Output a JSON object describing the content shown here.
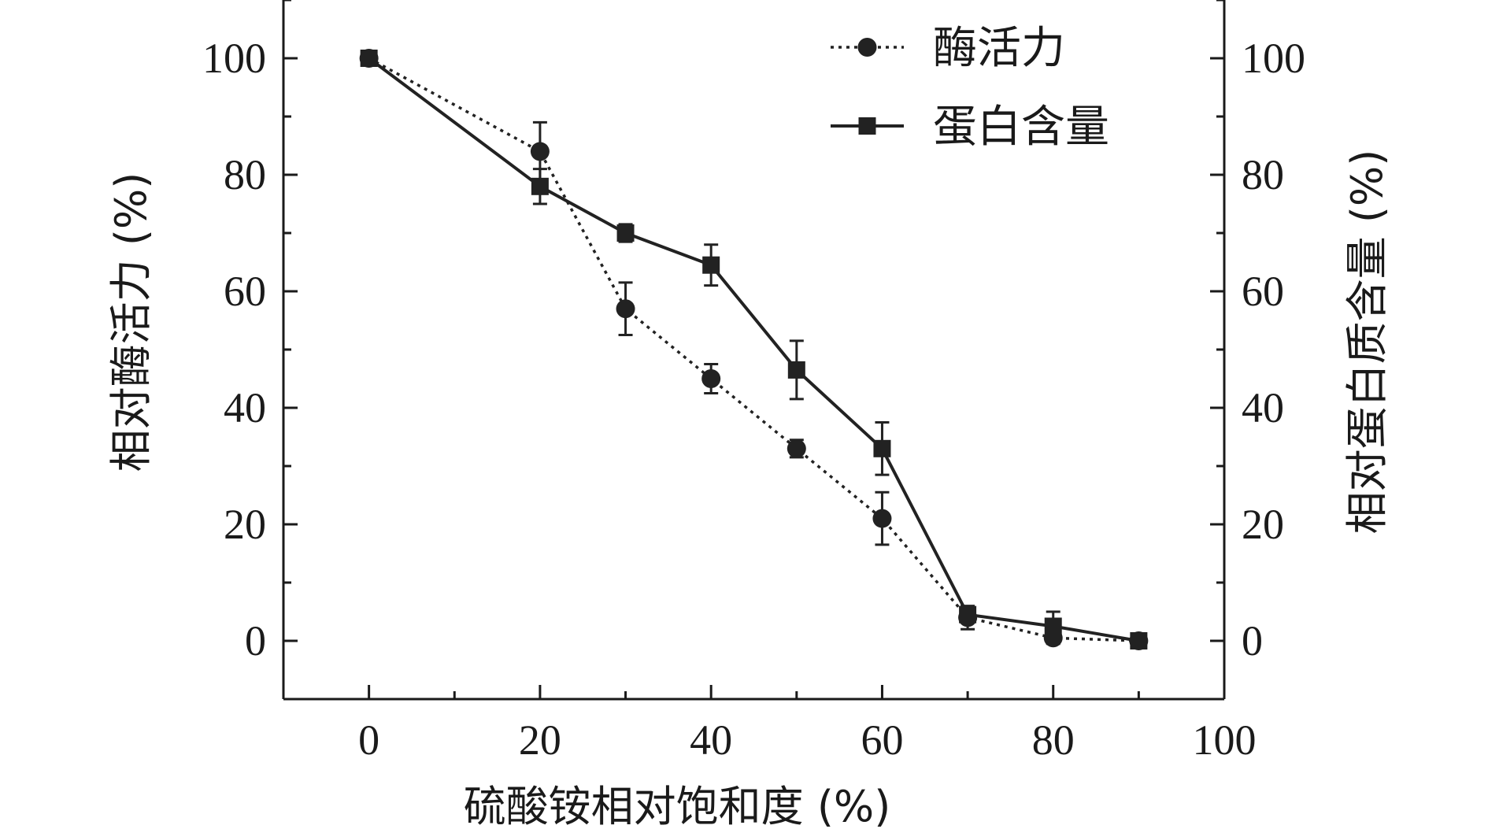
{
  "chart_data": {
    "type": "line",
    "xlabel": "硫酸铵相对饱和度 (%)",
    "ylabel_left": "相对酶活力 (%)",
    "ylabel_right": "相对蛋白质含量 (%)",
    "xlim": [
      -10,
      100
    ],
    "ylim": [
      -10,
      110
    ],
    "x_ticks": [
      0,
      20,
      40,
      60,
      80,
      100
    ],
    "y_ticks": [
      0,
      20,
      40,
      60,
      80,
      100
    ],
    "grid": false,
    "legend_position": "top-right",
    "series": [
      {
        "name": "酶活力",
        "marker": "circle",
        "line_style": "dotted",
        "color": "#222222",
        "x": [
          0,
          20,
          30,
          40,
          50,
          60,
          70,
          80,
          90
        ],
        "y": [
          100,
          84,
          57,
          45,
          33,
          21,
          4,
          0.5,
          0
        ],
        "error": [
          0,
          5,
          4.5,
          2.5,
          1.5,
          4.5,
          2,
          1,
          0.5
        ]
      },
      {
        "name": "蛋白含量",
        "marker": "square",
        "line_style": "solid",
        "color": "#222222",
        "x": [
          0,
          20,
          30,
          40,
          50,
          60,
          70,
          80,
          90
        ],
        "y": [
          100,
          78,
          70,
          64.5,
          46.5,
          33,
          4.5,
          2.5,
          0
        ],
        "error": [
          0,
          3,
          1.5,
          3.5,
          5,
          4.5,
          1,
          2.5,
          0.5
        ]
      }
    ]
  }
}
